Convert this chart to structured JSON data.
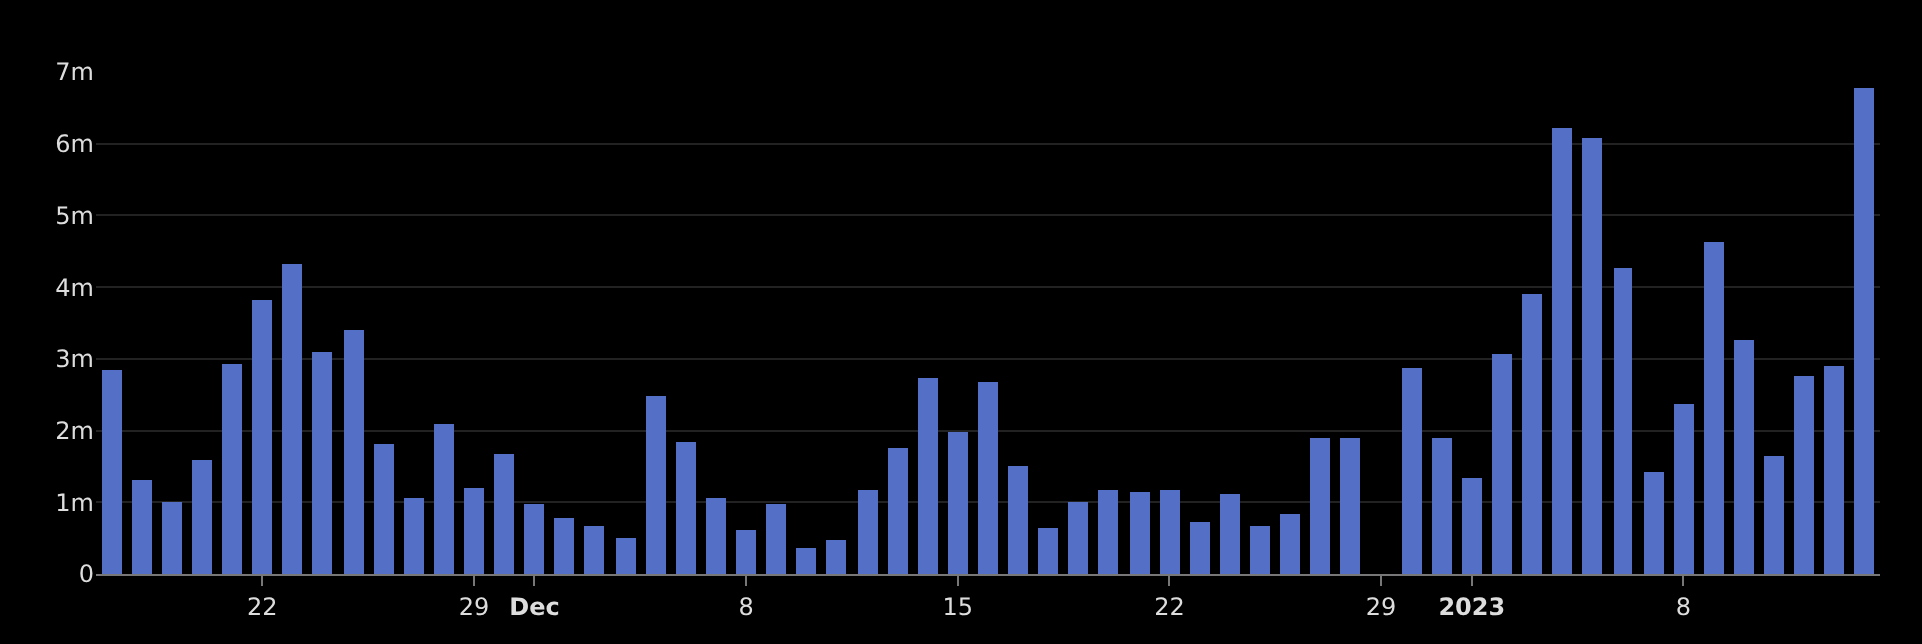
{
  "chart_data": {
    "type": "bar",
    "color": "#5470c6",
    "x": [
      "2022-11-17",
      "2022-11-18",
      "2022-11-19",
      "2022-11-20",
      "2022-11-21",
      "2022-11-22",
      "2022-11-23",
      "2022-11-24",
      "2022-11-25",
      "2022-11-26",
      "2022-11-27",
      "2022-11-28",
      "2022-11-29",
      "2022-11-30",
      "2022-12-01",
      "2022-12-02",
      "2022-12-03",
      "2022-12-04",
      "2022-12-05",
      "2022-12-06",
      "2022-12-07",
      "2022-12-08",
      "2022-12-09",
      "2022-12-10",
      "2022-12-11",
      "2022-12-12",
      "2022-12-13",
      "2022-12-14",
      "2022-12-15",
      "2022-12-16",
      "2022-12-17",
      "2022-12-18",
      "2022-12-19",
      "2022-12-20",
      "2022-12-21",
      "2022-12-22",
      "2022-12-23",
      "2022-12-24",
      "2022-12-25",
      "2022-12-26",
      "2022-12-27",
      "2022-12-28",
      "2022-12-29",
      "2022-12-30",
      "2022-12-31",
      "2023-01-01",
      "2023-01-02",
      "2023-01-03",
      "2023-01-04",
      "2023-01-05",
      "2023-01-06",
      "2023-01-07",
      "2023-01-08",
      "2023-01-09",
      "2023-01-10",
      "2023-01-11",
      "2023-01-12",
      "2023-01-13",
      "2023-01-14"
    ],
    "values": [
      2.85,
      1.32,
      1.01,
      1.6,
      2.93,
      3.83,
      4.31,
      3.1,
      3.41,
      1.8,
      1.05,
      2.08,
      1.2,
      1.68,
      0.97,
      0.79,
      0.66,
      0.5,
      2.49,
      1.83,
      1.05,
      0.61,
      0.98,
      0.37,
      0.47,
      1.17,
      1.75,
      2.72,
      1.99,
      2.69,
      1.51,
      0.63,
      1.0,
      1.17,
      1.14,
      1.17,
      0.73,
      1.11,
      0.67,
      0.84,
      1.91,
      1.89,
      null,
      2.86,
      1.9,
      1.33,
      3.08,
      3.91,
      6.22,
      6.07,
      4.28,
      1.43,
      2.36,
      4.63,
      3.26,
      1.65,
      2.77,
      2.91,
      6.77
    ],
    "xlim": [
      "2022-11-16T12:00",
      "2023-01-14T12:00"
    ],
    "xticks": [
      {
        "value": "2022-11-22",
        "label": "22"
      },
      {
        "value": "2022-11-29",
        "label": "29"
      },
      {
        "value": "2022-12-01",
        "label": "Dec"
      },
      {
        "value": "2022-12-08",
        "label": "8"
      },
      {
        "value": "2022-12-15",
        "label": "15"
      },
      {
        "value": "2022-12-22",
        "label": "22"
      },
      {
        "value": "2022-12-29",
        "label": "29"
      },
      {
        "value": "2023-01-01",
        "label": "2023"
      },
      {
        "value": "2023-01-08",
        "label": "8"
      }
    ],
    "ylim": [
      0,
      7
    ],
    "yticks": [
      0,
      {
        "value": 1,
        "label": "1m"
      },
      {
        "value": 2,
        "label": "2m"
      },
      {
        "value": 3,
        "label": "3m"
      },
      {
        "value": 4,
        "label": "4m"
      },
      {
        "value": 5,
        "label": "5m"
      },
      {
        "value": 6,
        "label": "6m"
      },
      {
        "value": 7,
        "label": "7m"
      }
    ],
    "grid": "y"
  }
}
